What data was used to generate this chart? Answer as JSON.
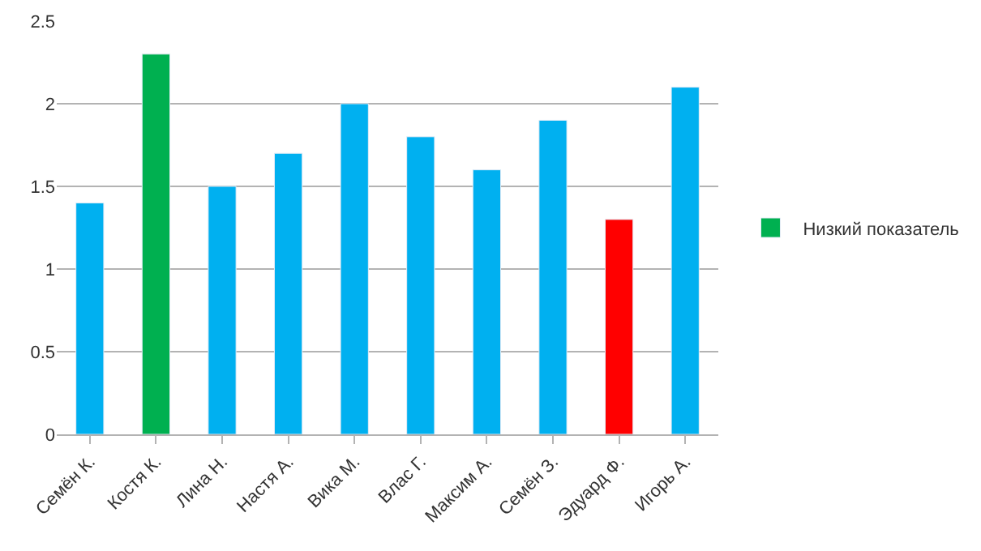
{
  "chart_data": {
    "type": "bar",
    "categories": [
      "Семён К.",
      "Костя К.",
      "Лина Н.",
      "Настя А.",
      "Вика М.",
      "Влас Г.",
      "Максим А.",
      "Семён З.",
      "Эдуард Ф.",
      "Игорь А."
    ],
    "series": [
      {
        "color": "#00b0f0",
        "values": [
          1.4,
          null,
          1.5,
          1.7,
          2.0,
          1.8,
          1.6,
          1.9,
          null,
          2.1
        ]
      },
      {
        "name": "Низкий показатель",
        "color": "#00b050",
        "values": [
          null,
          2.3,
          null,
          null,
          null,
          null,
          null,
          null,
          null,
          null
        ]
      },
      {
        "color": "#ff0000",
        "values": [
          null,
          null,
          null,
          null,
          null,
          null,
          null,
          null,
          1.3,
          null
        ]
      }
    ],
    "ylim": [
      0,
      2.5
    ],
    "yticks": [
      0,
      0.5,
      1,
      1.5,
      2,
      2.5
    ],
    "grid": "y",
    "legend": "right"
  }
}
